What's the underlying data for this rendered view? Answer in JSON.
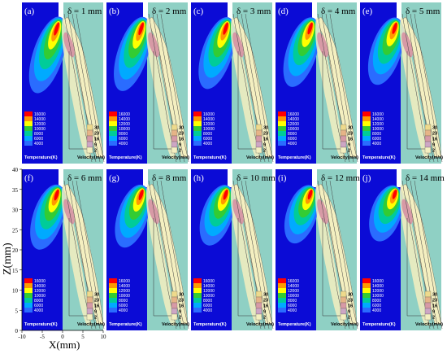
{
  "figure": {
    "y_axis_title": "Z(mm)",
    "x_axis_title": "X(mm)",
    "y_ticks": [
      "0",
      "5",
      "10",
      "15",
      "20",
      "25",
      "30",
      "35",
      "40"
    ],
    "x_ticks": [
      "-10",
      "-5",
      "0",
      "5",
      "10"
    ],
    "temperature_legend": {
      "title": "Temperature(K)",
      "levels": [
        "16000",
        "14000",
        "12000",
        "10000",
        "8000",
        "6000",
        "4000"
      ]
    },
    "velocity_legend": {
      "title": "Velocity(m/s)",
      "levels": [
        "30",
        "23",
        "16",
        "9",
        "2"
      ]
    }
  },
  "panels": [
    {
      "tag": "(a)",
      "delta": "δ = 1 mm"
    },
    {
      "tag": "(b)",
      "delta": "δ = 2 mm"
    },
    {
      "tag": "(c)",
      "delta": "δ = 3 mm"
    },
    {
      "tag": "(d)",
      "delta": "δ = 4 mm"
    },
    {
      "tag": "(e)",
      "delta": "δ = 5 mm"
    },
    {
      "tag": "(f)",
      "delta": "δ = 6 mm"
    },
    {
      "tag": "(g)",
      "delta": "δ = 8 mm"
    },
    {
      "tag": "(h)",
      "delta": "δ = 10 mm"
    },
    {
      "tag": "(i)",
      "delta": "δ = 12 mm"
    },
    {
      "tag": "(j)",
      "delta": "δ = 14 mm"
    }
  ],
  "colors": {
    "background_blue": "#0b0bd6",
    "gas_teal": "#8fd0c4",
    "plume_cream": "#f4efc0",
    "temp_levels": [
      "#ff0000",
      "#ff9900",
      "#ffff00",
      "#33cc33",
      "#00cc99",
      "#00aaff",
      "#2a6cff"
    ],
    "vel_levels": [
      "#eeda8c",
      "#e6b487",
      "#d79aa6",
      "#cda6c4",
      "#f4efc0"
    ]
  }
}
